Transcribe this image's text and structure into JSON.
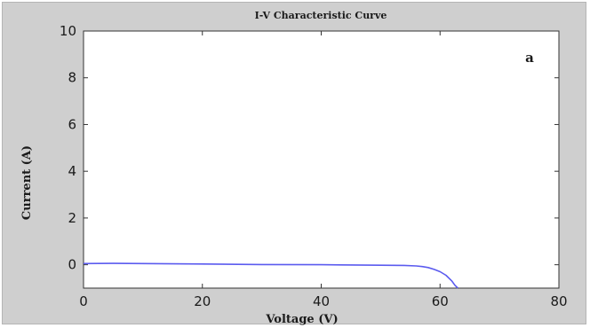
{
  "chart_data": {
    "type": "line",
    "title": "I-V Characteristic Curve",
    "xlabel": "Voltage (V)",
    "ylabel": "Current (A)",
    "annotation": "a",
    "xlim": [
      0,
      80
    ],
    "ylim": [
      -1,
      10
    ],
    "xticks": [
      "0",
      "20",
      "40",
      "60",
      "80"
    ],
    "yticks": [
      "0",
      "2",
      "4",
      "6",
      "8",
      "10"
    ],
    "grid": false,
    "series": [
      {
        "color": "#5b5bef",
        "x": [
          0,
          5,
          10,
          20,
          30,
          40,
          50,
          54,
          56,
          57,
          58,
          59,
          60,
          61,
          62,
          62.5,
          63
        ],
        "y": [
          0.05,
          0.06,
          0.05,
          0.03,
          0.01,
          0.0,
          -0.02,
          -0.03,
          -0.05,
          -0.08,
          -0.12,
          -0.2,
          -0.3,
          -0.45,
          -0.7,
          -0.88,
          -1.0
        ]
      }
    ]
  }
}
